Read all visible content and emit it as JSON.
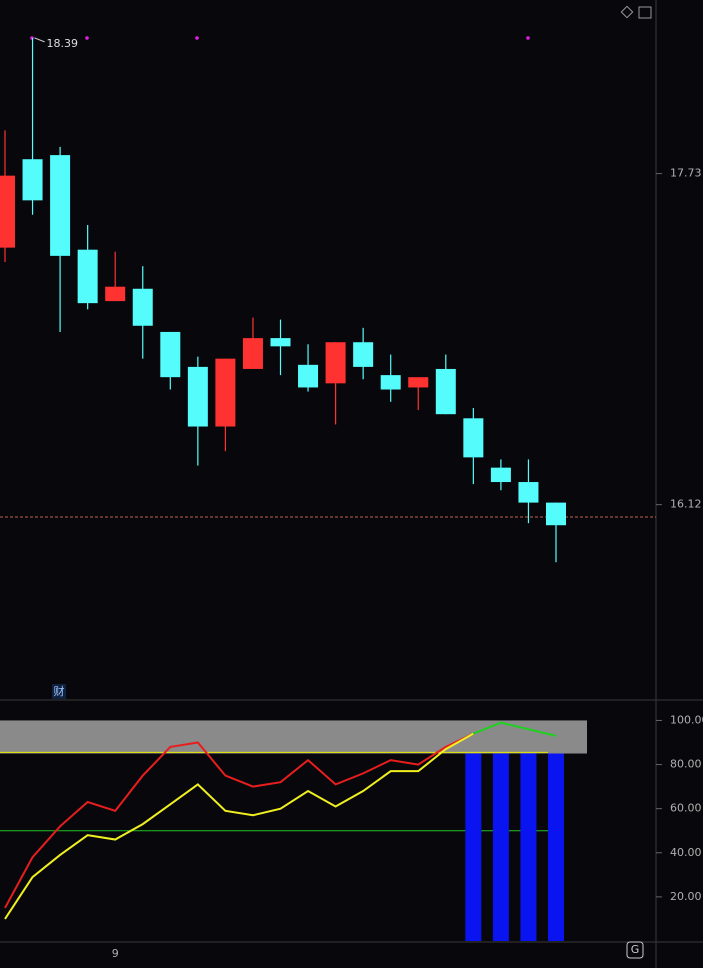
{
  "chart_data": [
    {
      "type": "candlestick",
      "categories": [
        null,
        null,
        null,
        null,
        "9",
        null,
        null,
        null,
        null,
        null,
        null,
        null,
        null,
        null,
        null,
        null,
        null,
        null,
        null,
        null,
        null
      ],
      "open": [
        17.37,
        17.8,
        17.82,
        17.36,
        17.11,
        17.17,
        16.96,
        16.79,
        16.5,
        16.78,
        16.93,
        16.8,
        16.71,
        16.91,
        16.75,
        16.69,
        16.78,
        16.54,
        16.3,
        16.23,
        16.13
      ],
      "high": [
        17.94,
        18.39,
        17.86,
        17.48,
        17.35,
        17.28,
        16.96,
        16.84,
        16.83,
        17.03,
        17.02,
        16.9,
        16.91,
        16.98,
        16.85,
        16.74,
        16.85,
        16.59,
        16.34,
        16.34,
        16.13
      ],
      "low": [
        17.3,
        17.53,
        16.96,
        17.07,
        17.11,
        16.83,
        16.68,
        16.31,
        16.38,
        16.78,
        16.75,
        16.67,
        16.51,
        16.73,
        16.62,
        16.58,
        16.56,
        16.22,
        16.19,
        16.03,
        15.84
      ],
      "close": [
        17.72,
        17.6,
        17.33,
        17.1,
        17.18,
        16.99,
        16.74,
        16.5,
        16.83,
        16.93,
        16.89,
        16.69,
        16.91,
        16.79,
        16.68,
        16.74,
        16.56,
        16.35,
        16.23,
        16.13,
        16.02
      ],
      "up_color": "#ff3232",
      "down_color": "#54fcfc",
      "high_label": "18.39",
      "last_price_line": 16.06,
      "ylim": [
        15.17,
        18.55
      ],
      "yticks": [
        17.73,
        16.12
      ],
      "badge": "财"
    },
    {
      "type": "indicator",
      "ylim": [
        0,
        107
      ],
      "yticks": [
        {
          "value": 100,
          "label": "100.00"
        },
        {
          "value": 80,
          "label": "80.00"
        },
        {
          "value": 60,
          "label": "60.00"
        },
        {
          "value": 40,
          "label": "40.00"
        },
        {
          "value": 20,
          "label": "20.00"
        }
      ],
      "band": [
        85,
        100
      ],
      "band_color": "#8a8a8a",
      "hlines": [
        {
          "value": 85.5,
          "color": "#e8e800"
        },
        {
          "value": 50,
          "color": "#20c020"
        }
      ],
      "series": [
        {
          "color": "#e81e1e",
          "values": [
            15,
            38,
            52,
            63,
            59,
            75,
            88,
            90,
            75,
            70,
            72,
            82,
            71,
            76,
            82,
            80,
            88,
            94,
            null,
            null,
            null
          ]
        },
        {
          "color": "#f0f020",
          "values": [
            10,
            29,
            39,
            48,
            46,
            53,
            62,
            71,
            59,
            57,
            60,
            68,
            61,
            68,
            77,
            77,
            87,
            94,
            null,
            null,
            null
          ]
        },
        {
          "color": "#20d020",
          "values": [
            null,
            null,
            null,
            null,
            null,
            null,
            null,
            null,
            null,
            null,
            null,
            null,
            null,
            null,
            null,
            null,
            null,
            94,
            99,
            96,
            93
          ]
        }
      ],
      "bars": {
        "color": "#0a14f0",
        "values": [
          null,
          null,
          null,
          null,
          null,
          null,
          null,
          null,
          null,
          null,
          null,
          null,
          null,
          null,
          null,
          null,
          null,
          85,
          85,
          85,
          85
        ]
      }
    }
  ]
}
